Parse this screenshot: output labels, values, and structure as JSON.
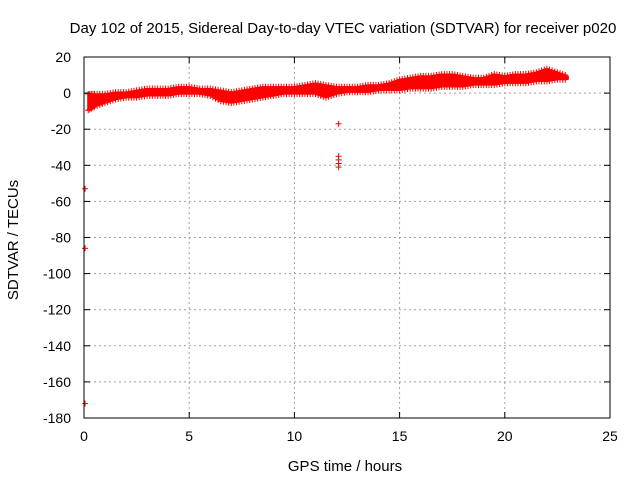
{
  "chart_data": {
    "type": "scatter",
    "title": "Day 102 of 2015, Sidereal Day-to-day VTEC variation (SDTVAR) for receiver p020",
    "xlabel": "GPS time / hours",
    "ylabel": "SDTVAR / TECUs",
    "xlim": [
      0,
      25
    ],
    "ylim": [
      -180,
      20
    ],
    "xticks": [
      0,
      5,
      10,
      15,
      20,
      25
    ],
    "yticks": [
      20,
      0,
      -20,
      -40,
      -60,
      -80,
      -100,
      -120,
      -140,
      -160,
      -180
    ],
    "grid": true,
    "marker": "+",
    "series_color": "#ff0000",
    "band": {
      "description": "dense band of measurements",
      "x": [
        0.2,
        0.5,
        1.0,
        1.5,
        2.0,
        2.5,
        3.0,
        3.5,
        4.0,
        4.5,
        5.0,
        5.5,
        6.0,
        6.5,
        7.0,
        7.5,
        8.0,
        8.5,
        9.0,
        9.5,
        10.0,
        10.5,
        11.0,
        11.5,
        12.0,
        12.5,
        13.0,
        13.5,
        14.0,
        14.5,
        15.0,
        15.5,
        16.0,
        16.5,
        17.0,
        17.5,
        18.0,
        18.5,
        19.0,
        19.5,
        20.0,
        20.5,
        21.0,
        21.5,
        22.0,
        22.5,
        23.0
      ],
      "y_low": [
        -9,
        -7,
        -5,
        -3,
        -2,
        -2,
        -1,
        -1,
        -1,
        0,
        0,
        0,
        -1,
        -4,
        -5,
        -4,
        -3,
        -2,
        -1,
        0,
        0,
        0,
        0,
        -2,
        0,
        1,
        1,
        1,
        2,
        2,
        2,
        3,
        3,
        3,
        4,
        4,
        4,
        5,
        5,
        5,
        6,
        6,
        6,
        7,
        7,
        8,
        8
      ],
      "y_high": [
        -1,
        -1,
        -1,
        0,
        0,
        1,
        2,
        2,
        2,
        3,
        3,
        2,
        2,
        1,
        0,
        1,
        2,
        3,
        3,
        3,
        3,
        4,
        5,
        4,
        3,
        3,
        3,
        4,
        4,
        5,
        7,
        8,
        9,
        9,
        10,
        10,
        9,
        8,
        8,
        10,
        9,
        10,
        10,
        11,
        13,
        11,
        9
      ]
    },
    "outliers": {
      "x": [
        12.1,
        12.1,
        12.1,
        12.1,
        12.1,
        0.05,
        0.05,
        0.05
      ],
      "y": [
        -17,
        -35,
        -37,
        -39,
        -41,
        -53,
        -86,
        -172
      ]
    }
  }
}
